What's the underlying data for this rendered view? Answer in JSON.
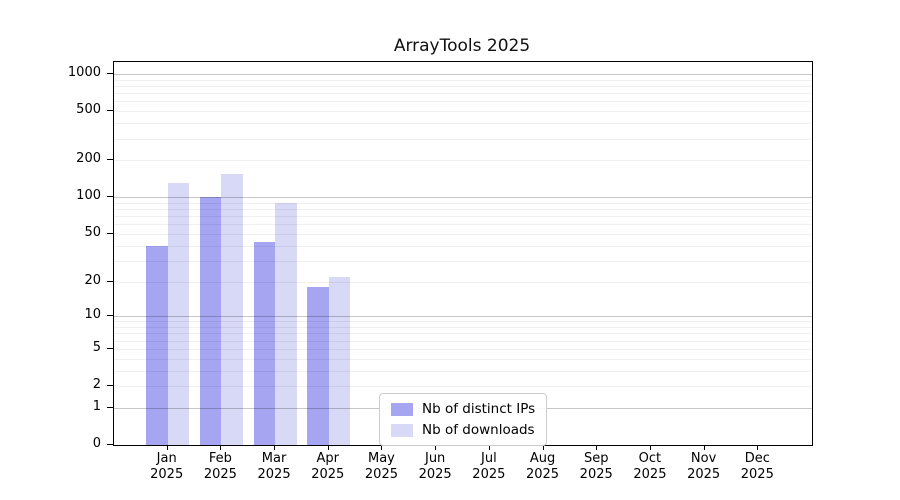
{
  "chart_data": {
    "type": "bar",
    "title": "ArrayTools 2025",
    "categories": [
      "Jan",
      "Feb",
      "Mar",
      "Apr",
      "May",
      "Jun",
      "Jul",
      "Aug",
      "Sep",
      "Oct",
      "Nov",
      "Dec"
    ],
    "x_axis": {
      "year_label": "2025"
    },
    "series": [
      {
        "name": "Nb of distinct IPs",
        "color": "#a5a5f2",
        "values": [
          40,
          100,
          43,
          18,
          0,
          0,
          0,
          0,
          0,
          0,
          0,
          0
        ]
      },
      {
        "name": "Nb of downloads",
        "color": "#d8d8f7",
        "values": [
          130,
          155,
          90,
          22,
          0,
          0,
          0,
          0,
          0,
          0,
          0,
          0
        ]
      }
    ],
    "y_axis": {
      "scale": "log1p",
      "tick_values": [
        0,
        1,
        2,
        5,
        10,
        20,
        50,
        100,
        200,
        500,
        1000
      ],
      "ylim": [
        0,
        1250
      ]
    },
    "legend": {
      "position": "lower center"
    },
    "grid": {
      "major_lines": [
        1,
        10,
        100,
        1000
      ],
      "minor_lines_per_decade": [
        2,
        3,
        4,
        5,
        6,
        7,
        8,
        9
      ]
    },
    "colors": {
      "major_grid": "rgba(0,0,0,0.22)",
      "minor_grid": "rgba(0,0,0,0.06)",
      "axis": "#000000",
      "background": "#ffffff"
    }
  }
}
